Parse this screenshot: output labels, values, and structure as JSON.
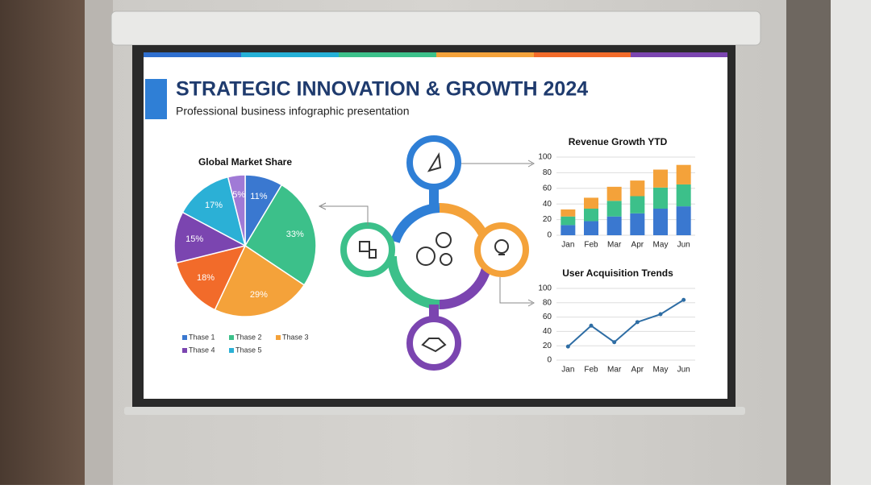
{
  "header": {
    "title": "STRATEGIC INNOVATION & GROWTH 2024",
    "subtitle": "Professional business infographic presentation"
  },
  "chart_data": [
    {
      "type": "pie",
      "title": "Global Market Share",
      "values": [
        11,
        33,
        29,
        18,
        15,
        17,
        5
      ],
      "value_labels": [
        "11%",
        "33%",
        "29%",
        "18%",
        "15%",
        "17%",
        "5%"
      ],
      "colors": [
        "#3a78d0",
        "#3cc08a",
        "#f4a23a",
        "#f26b2a",
        "#7b45b0",
        "#2bb0d6",
        "#a07ad6"
      ],
      "legend": [
        {
          "name": "Thase 1",
          "color": "#3a78d0"
        },
        {
          "name": "Thase 2",
          "color": "#3cc08a"
        },
        {
          "name": "Thase 3",
          "color": "#f4a23a"
        },
        {
          "name": "Thase 4",
          "color": "#7b45b0"
        },
        {
          "name": "Thase 5",
          "color": "#2bb0d6"
        }
      ]
    },
    {
      "type": "stacked_bar",
      "title": "Revenue Growth YTD",
      "categories": [
        "Jan",
        "Feb",
        "Mar",
        "Apr",
        "May",
        "Jun"
      ],
      "series": [
        {
          "color": "#3a78d0",
          "values": [
            13,
            18,
            24,
            28,
            34,
            37
          ]
        },
        {
          "color": "#3cc08a",
          "values": [
            11,
            16,
            20,
            22,
            27,
            28
          ]
        },
        {
          "color": "#f4a23a",
          "values": [
            9,
            14,
            18,
            20,
            23,
            25
          ]
        }
      ],
      "ylim": [
        0,
        100
      ],
      "yticks": [
        0,
        20,
        40,
        60,
        80,
        100
      ],
      "grid": true
    },
    {
      "type": "line",
      "title": "User Acquisition Trends",
      "categories": [
        "Jan",
        "Feb",
        "Mar",
        "Apr",
        "May",
        "Jun"
      ],
      "series": [
        {
          "color": "#2e6da4",
          "values": [
            19,
            48,
            25,
            53,
            64,
            84
          ]
        }
      ],
      "ylim": [
        0,
        100
      ],
      "yticks": [
        0,
        20,
        40,
        60,
        80,
        100
      ],
      "grid": true
    }
  ]
}
